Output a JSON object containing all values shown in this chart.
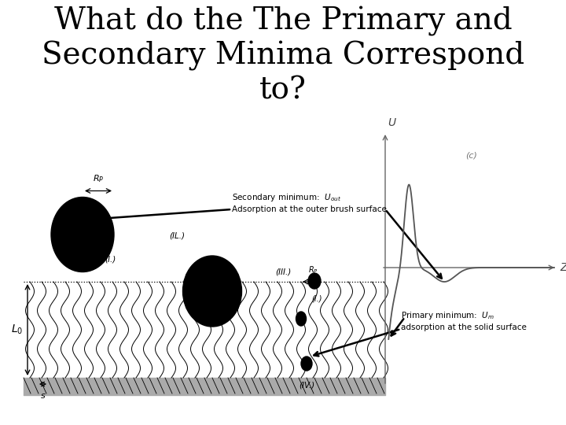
{
  "title_line1": "What do the The Primary and",
  "title_line2": "Secondary Minima Correspond",
  "title_line3": "to?",
  "title_fontsize": 28,
  "title_font": "DejaVu Serif",
  "bg_color": "#ffffff",
  "secondary_label_line1": "Secondary minimum:  $U_{out}$",
  "secondary_label_line2": "Adsorption at the outer brush surface",
  "primary_label_line1": "Primary minimum:  $U_m$",
  "primary_label_line2": "adsorption at the solid surface",
  "annotation_fontsize": 7.5
}
